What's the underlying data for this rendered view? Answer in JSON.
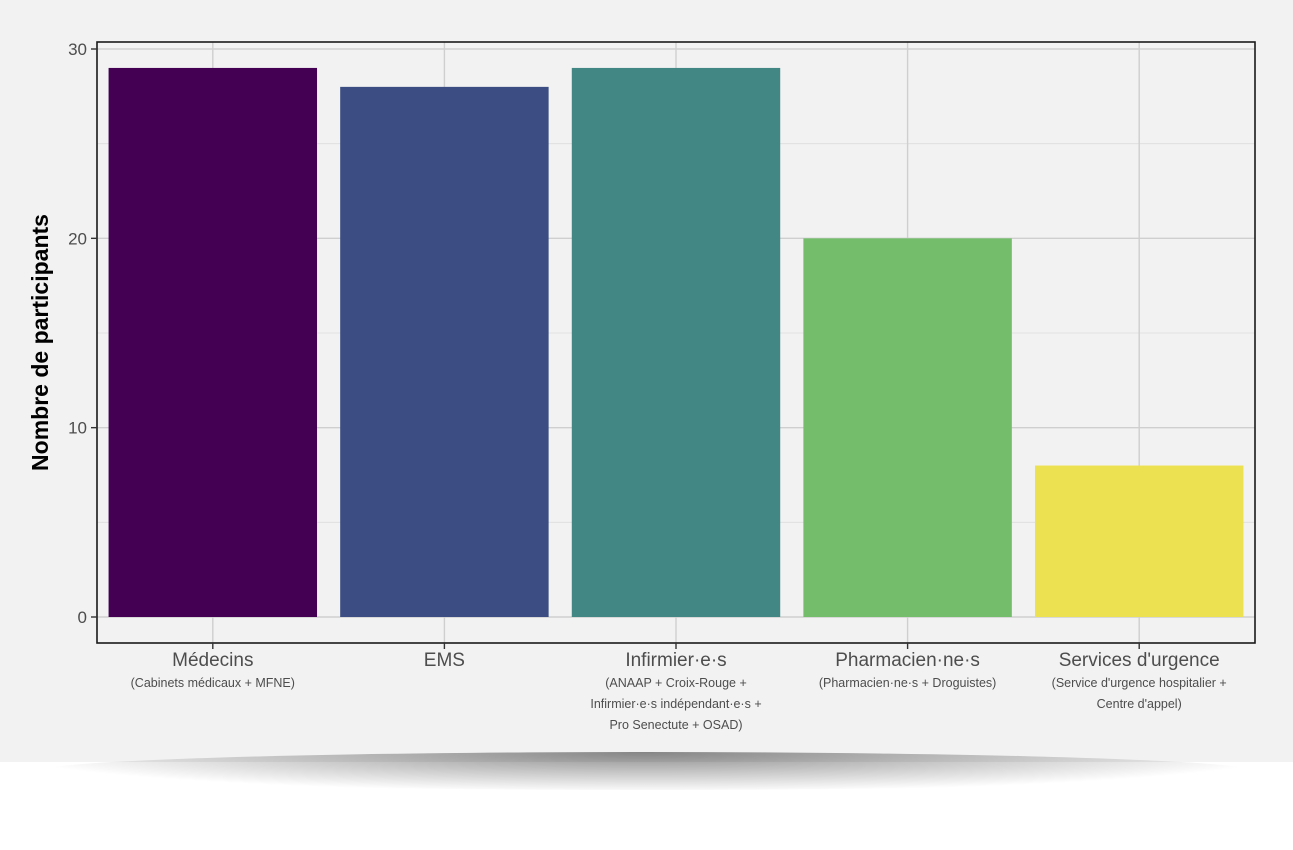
{
  "chart_data": {
    "type": "bar",
    "title": "",
    "xlabel": "",
    "ylabel": "Nombre de participants",
    "ylim": [
      0,
      30
    ],
    "yticks": [
      0,
      10,
      20,
      30
    ],
    "grid": true,
    "legend": "none",
    "categories": [
      {
        "label": "Médecins",
        "sublabel": [
          "(Cabinets médicaux + MFNE)"
        ],
        "value": 29,
        "color": "#440154"
      },
      {
        "label": "EMS",
        "sublabel": [],
        "value": 28,
        "color": "#3b4d82"
      },
      {
        "label": "Infirmier·e·s",
        "sublabel": [
          "(ANAAP + Croix-Rouge +",
          "Infirmier·e·s indépendant·e·s +",
          "Pro Senectute + OSAD)"
        ],
        "value": 29,
        "color": "#428784"
      },
      {
        "label": "Pharmacien·ne·s",
        "sublabel": [
          "(Pharmacien·ne·s + Droguistes)"
        ],
        "value": 20,
        "color": "#74bd6a"
      },
      {
        "label": "Services d'urgence",
        "sublabel": [
          "(Service d'urgence hospitalier +",
          "Centre d'appel)"
        ],
        "value": 8,
        "color": "#ece150"
      }
    ]
  }
}
